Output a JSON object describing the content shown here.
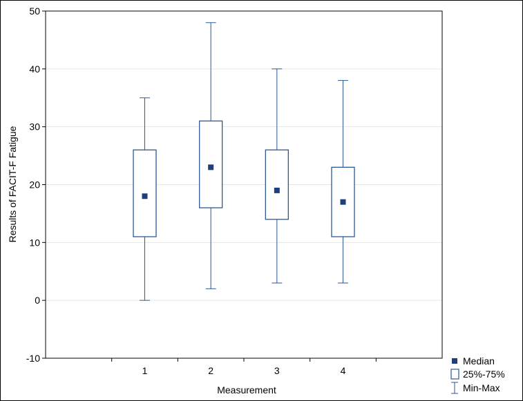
{
  "chart_data": {
    "type": "boxplot",
    "title": "",
    "xlabel": "Measurement",
    "ylabel": "Results of  FACIT-F Fatigue",
    "ylim": [
      -10,
      50
    ],
    "yticks": [
      -10,
      0,
      10,
      20,
      30,
      40,
      50
    ],
    "grid": true,
    "legend_placement": "bottom-right",
    "categories": [
      "1",
      "2",
      "3",
      "4"
    ],
    "boxes": [
      {
        "category": "1",
        "min": 0,
        "q1": 11,
        "median": 18,
        "q3": 26,
        "max": 35
      },
      {
        "category": "2",
        "min": 2,
        "q1": 16,
        "median": 23,
        "q3": 31,
        "max": 48
      },
      {
        "category": "3",
        "min": 3,
        "q1": 14,
        "median": 19,
        "q3": 26,
        "max": 40
      },
      {
        "category": "4",
        "min": 3,
        "q1": 11,
        "median": 17,
        "q3": 23,
        "max": 38
      }
    ],
    "legend": [
      {
        "label": "Median",
        "symbol": "filled-square"
      },
      {
        "label": "25%-75%",
        "symbol": "open-box"
      },
      {
        "label": "Min-Max",
        "symbol": "whisker"
      }
    ],
    "colors": {
      "series": "#2b5797",
      "median": "#1f3f7a",
      "grid": "#e6e6e6",
      "axis": "#000000"
    }
  }
}
